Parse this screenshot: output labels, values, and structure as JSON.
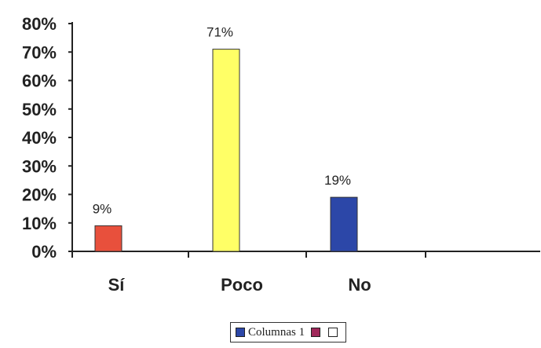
{
  "chart_data": {
    "type": "bar",
    "categories": [
      "Sí",
      "Poco",
      "No"
    ],
    "values": [
      9,
      71,
      19
    ],
    "data_labels": [
      "9%",
      "71%",
      "19%"
    ],
    "bar_colors": [
      "#e8503c",
      "#ffff66",
      "#2c47a8"
    ],
    "ylim": [
      0,
      80
    ],
    "y_ticks": [
      "0%",
      "10%",
      "20%",
      "30%",
      "40%",
      "50%",
      "60%",
      "70%",
      "80%"
    ],
    "grid": false,
    "legend": {
      "placement": "bottom",
      "entries": [
        {
          "label": "Columnas 1",
          "color": "#2c47a8"
        },
        {
          "label": "",
          "color": "#a0285a"
        },
        {
          "label": "",
          "color": "#ffffff"
        }
      ]
    }
  }
}
